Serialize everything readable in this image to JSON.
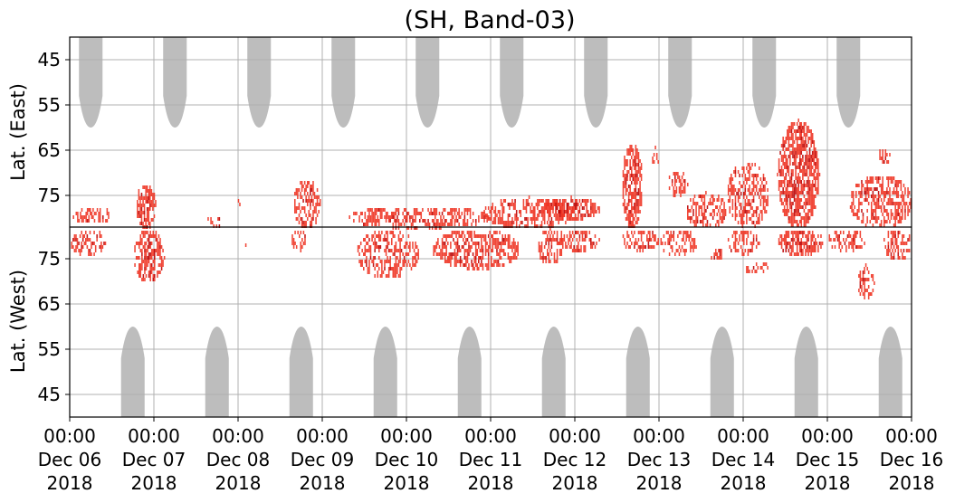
{
  "chart_data": {
    "type": "heatmap",
    "title": "(SH, Band-03)",
    "ylabel_top": "Lat. (East)",
    "ylabel_bottom": "Lat. (West)",
    "x_range": [
      "2018-12-06 00:00",
      "2018-12-16 00:00"
    ],
    "x_ticks": [
      {
        "time": "00:00",
        "date": "Dec 06",
        "year": "2018"
      },
      {
        "time": "00:00",
        "date": "Dec 07",
        "year": "2018"
      },
      {
        "time": "00:00",
        "date": "Dec 08",
        "year": "2018"
      },
      {
        "time": "00:00",
        "date": "Dec 09",
        "year": "2018"
      },
      {
        "time": "00:00",
        "date": "Dec 10",
        "year": "2018"
      },
      {
        "time": "00:00",
        "date": "Dec 11",
        "year": "2018"
      },
      {
        "time": "00:00",
        "date": "Dec 12",
        "year": "2018"
      },
      {
        "time": "00:00",
        "date": "Dec 13",
        "year": "2018"
      },
      {
        "time": "00:00",
        "date": "Dec 14",
        "year": "2018"
      },
      {
        "time": "00:00",
        "date": "Dec 15",
        "year": "2018"
      },
      {
        "time": "00:00",
        "date": "Dec 16",
        "year": "2018"
      }
    ],
    "y_ticks_east": [
      "45",
      "55",
      "65",
      "75"
    ],
    "y_ticks_west": [
      "75",
      "65",
      "55",
      "45"
    ],
    "y_range_east": [
      40,
      82
    ],
    "y_range_west": [
      82,
      40
    ],
    "grid": true,
    "colors": {
      "event": "#ee3322",
      "event_strong": "#bb0000",
      "daylight": "#bdbdbd",
      "grid": "#b0b0b0"
    },
    "daylight_east_center_days": [
      0.25,
      1.25,
      2.25,
      3.25,
      4.25,
      5.25,
      6.25,
      7.25,
      8.25,
      9.25
    ],
    "daylight_west_center_days": [
      0.75,
      1.75,
      2.75,
      3.75,
      4.75,
      5.75,
      6.75,
      7.75,
      8.75,
      9.75
    ],
    "daylight_min_lat": 60,
    "events": [
      {
        "side": "east",
        "t0": 0.02,
        "t1": 0.5,
        "lat0": 77,
        "lat1": 81,
        "strength": 0.6
      },
      {
        "side": "west",
        "t0": 0.0,
        "t1": 0.42,
        "lat0": 76,
        "lat1": 82,
        "strength": 0.6
      },
      {
        "side": "east",
        "t0": 0.78,
        "t1": 1.02,
        "lat0": 72,
        "lat1": 82,
        "strength": 0.8
      },
      {
        "side": "west",
        "t0": 0.75,
        "t1": 1.12,
        "lat0": 70,
        "lat1": 82,
        "strength": 0.8
      },
      {
        "side": "east",
        "t0": 1.62,
        "t1": 1.82,
        "lat0": 79,
        "lat1": 82,
        "strength": 0.5
      },
      {
        "side": "east",
        "t0": 1.98,
        "t1": 2.02,
        "lat0": 75,
        "lat1": 78,
        "strength": 0.5
      },
      {
        "side": "west",
        "t0": 2.05,
        "t1": 2.1,
        "lat0": 78,
        "lat1": 80,
        "strength": 0.5
      },
      {
        "side": "east",
        "t0": 2.65,
        "t1": 2.98,
        "lat0": 71,
        "lat1": 82,
        "strength": 0.6
      },
      {
        "side": "west",
        "t0": 2.62,
        "t1": 2.8,
        "lat0": 77,
        "lat1": 82,
        "strength": 0.6
      },
      {
        "side": "east",
        "t0": 3.3,
        "t1": 5.0,
        "lat0": 77,
        "lat1": 82,
        "strength": 0.6
      },
      {
        "side": "west",
        "t0": 3.4,
        "t1": 4.15,
        "lat0": 71,
        "lat1": 82,
        "strength": 0.6
      },
      {
        "side": "west",
        "t0": 4.3,
        "t1": 5.35,
        "lat0": 73,
        "lat1": 82,
        "strength": 0.7
      },
      {
        "side": "east",
        "t0": 4.9,
        "t1": 6.0,
        "lat0": 75,
        "lat1": 82,
        "strength": 0.6
      },
      {
        "side": "east",
        "t0": 5.6,
        "t1": 6.3,
        "lat0": 75,
        "lat1": 80,
        "strength": 0.9
      },
      {
        "side": "west",
        "t0": 5.55,
        "t1": 5.85,
        "lat0": 74,
        "lat1": 82,
        "strength": 0.6
      },
      {
        "side": "west",
        "t0": 5.75,
        "t1": 6.3,
        "lat0": 77,
        "lat1": 82,
        "strength": 0.6
      },
      {
        "side": "east",
        "t0": 6.55,
        "t1": 6.8,
        "lat0": 63,
        "lat1": 82,
        "strength": 0.9
      },
      {
        "side": "east",
        "t0": 6.9,
        "t1": 7.0,
        "lat0": 64,
        "lat1": 68,
        "strength": 0.6
      },
      {
        "side": "east",
        "t0": 7.1,
        "t1": 7.35,
        "lat0": 69,
        "lat1": 75,
        "strength": 0.6
      },
      {
        "side": "west",
        "t0": 6.55,
        "t1": 7.0,
        "lat0": 77,
        "lat1": 82,
        "strength": 0.6
      },
      {
        "side": "east",
        "t0": 7.3,
        "t1": 7.8,
        "lat0": 74,
        "lat1": 82,
        "strength": 0.5
      },
      {
        "side": "west",
        "t0": 7.0,
        "t1": 7.45,
        "lat0": 76,
        "lat1": 82,
        "strength": 0.5
      },
      {
        "side": "west",
        "t0": 7.6,
        "t1": 7.75,
        "lat0": 75,
        "lat1": 78,
        "strength": 0.5
      },
      {
        "side": "east",
        "t0": 7.8,
        "t1": 8.3,
        "lat0": 67,
        "lat1": 82,
        "strength": 0.5
      },
      {
        "side": "west",
        "t0": 7.8,
        "t1": 8.2,
        "lat0": 76,
        "lat1": 82,
        "strength": 0.5
      },
      {
        "side": "west",
        "t0": 8.0,
        "t1": 8.3,
        "lat0": 72,
        "lat1": 75,
        "strength": 0.6
      },
      {
        "side": "east",
        "t0": 8.4,
        "t1": 8.9,
        "lat0": 58,
        "lat1": 82,
        "strength": 1.0
      },
      {
        "side": "west",
        "t0": 8.4,
        "t1": 8.95,
        "lat0": 76,
        "lat1": 82,
        "strength": 0.9
      },
      {
        "side": "west",
        "t0": 9.0,
        "t1": 9.45,
        "lat0": 77,
        "lat1": 82,
        "strength": 0.6
      },
      {
        "side": "west",
        "t0": 9.35,
        "t1": 9.55,
        "lat0": 66,
        "lat1": 74,
        "strength": 0.6
      },
      {
        "side": "east",
        "t0": 9.25,
        "t1": 10.0,
        "lat0": 70,
        "lat1": 82,
        "strength": 0.6
      },
      {
        "side": "east",
        "t0": 9.6,
        "t1": 9.75,
        "lat0": 64,
        "lat1": 68,
        "strength": 0.6
      },
      {
        "side": "west",
        "t0": 9.65,
        "t1": 10.0,
        "lat0": 75,
        "lat1": 82,
        "strength": 0.6
      }
    ]
  }
}
